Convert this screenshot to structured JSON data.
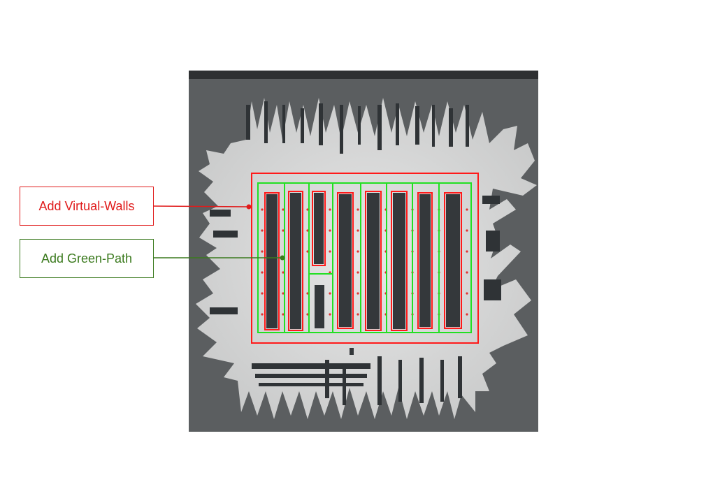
{
  "callouts": {
    "virtual_walls": "Add Virtual-Walls",
    "green_path": "Add Green-Path"
  },
  "colors": {
    "virtual_wall": "#ff1a1a",
    "green_path": "#22e022",
    "walls_label": "#e01b1b",
    "path_label": "#3b7a1e",
    "free_space": "#dcdcdc",
    "unknown_space": "#5b5e60",
    "obstacle": "#2f3336"
  }
}
